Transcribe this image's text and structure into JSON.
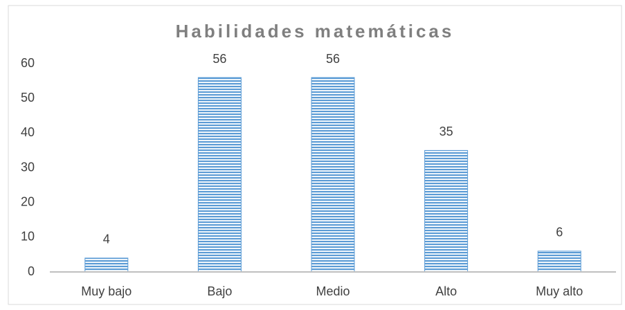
{
  "chart_data": {
    "type": "bar",
    "title": "Habilidades matemáticas",
    "categories": [
      "Muy bajo",
      "Bajo",
      "Medio",
      "Alto",
      "Muy alto"
    ],
    "values": [
      4,
      56,
      56,
      35,
      6
    ],
    "color": "#5b9bd5",
    "ylim": [
      0,
      60
    ],
    "yticks": [
      0,
      10,
      20,
      30,
      40,
      50,
      60
    ],
    "grid": false
  }
}
